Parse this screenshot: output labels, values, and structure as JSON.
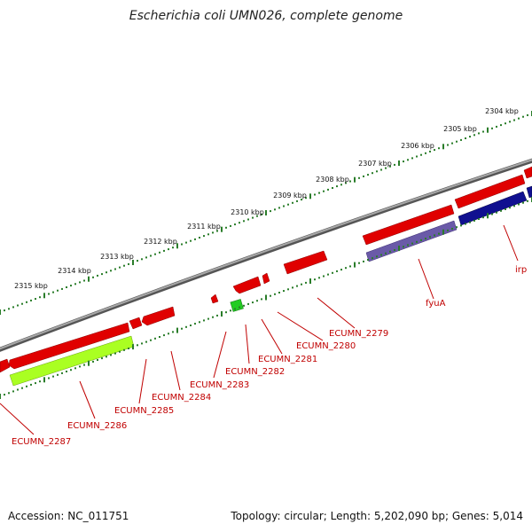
{
  "title": "Escherichia coli UMN026, complete genome",
  "footer": {
    "accession": "Accession: NC_011751",
    "summary": "Topology: circular; Length: 5,202,090 bp; Genes: 5,014"
  },
  "colors": {
    "backbone": "#808080",
    "forward_gene": "#e00000",
    "reverse_gene_red": "#e00000",
    "green_gene": "#aaff22",
    "small_green": "#22cc22",
    "blue_gene": "#101090",
    "purple_gene": "#6a5aa8",
    "ticks": "#2a7d2a",
    "label": "#c00000"
  },
  "kbp_ticks": [
    "2304 kbp",
    "2305 kbp",
    "2306 kbp",
    "2307 kbp",
    "2308 kbp",
    "2309 kbp",
    "2310 kbp",
    "2311 kbp",
    "2312 kbp",
    "2313 kbp",
    "2314 kbp",
    "2315 kbp"
  ],
  "gene_labels": [
    "irp",
    "fyuA",
    "ECUMN_2279",
    "ECUMN_2280",
    "ECUMN_2281",
    "ECUMN_2282",
    "ECUMN_2283",
    "ECUMN_2284",
    "ECUMN_2285",
    "ECUMN_2286",
    "ECUMN_2287"
  ]
}
